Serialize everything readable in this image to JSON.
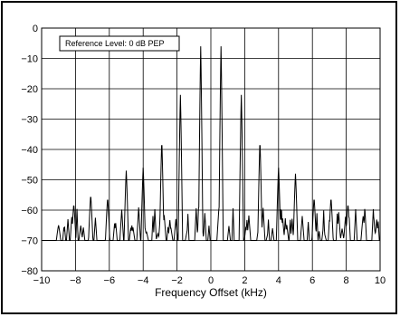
{
  "chart_data": {
    "type": "line",
    "xlabel": "Frequency Offset (kHz)",
    "ylabel": "",
    "xlim": [
      -10,
      10
    ],
    "ylim": [
      -80,
      0
    ],
    "xticks": [
      -10,
      -8,
      -6,
      -4,
      -2,
      0,
      2,
      4,
      6,
      8,
      10
    ],
    "yticks": [
      0,
      -10,
      -20,
      -30,
      -40,
      -50,
      -60,
      -70,
      -80
    ],
    "grid": true,
    "annotation": "Reference Level: 0 dB PEP",
    "noise_floor": -70,
    "peaks": [
      {
        "x": -9.0,
        "y": -65
      },
      {
        "x": -8.1,
        "y": -58
      },
      {
        "x": -7.1,
        "y": -55
      },
      {
        "x": -6.1,
        "y": -56
      },
      {
        "x": -5.0,
        "y": -47
      },
      {
        "x": -4.0,
        "y": -46
      },
      {
        "x": -2.9,
        "y": -37
      },
      {
        "x": -1.8,
        "y": -22
      },
      {
        "x": -0.6,
        "y": -6
      },
      {
        "x": 0.6,
        "y": -6
      },
      {
        "x": 1.8,
        "y": -22
      },
      {
        "x": 2.9,
        "y": -37
      },
      {
        "x": 4.0,
        "y": -46
      },
      {
        "x": 5.0,
        "y": -48
      },
      {
        "x": 6.1,
        "y": -56
      },
      {
        "x": 7.1,
        "y": -56
      },
      {
        "x": 8.1,
        "y": -58
      },
      {
        "x": 9.0,
        "y": -62
      }
    ]
  }
}
